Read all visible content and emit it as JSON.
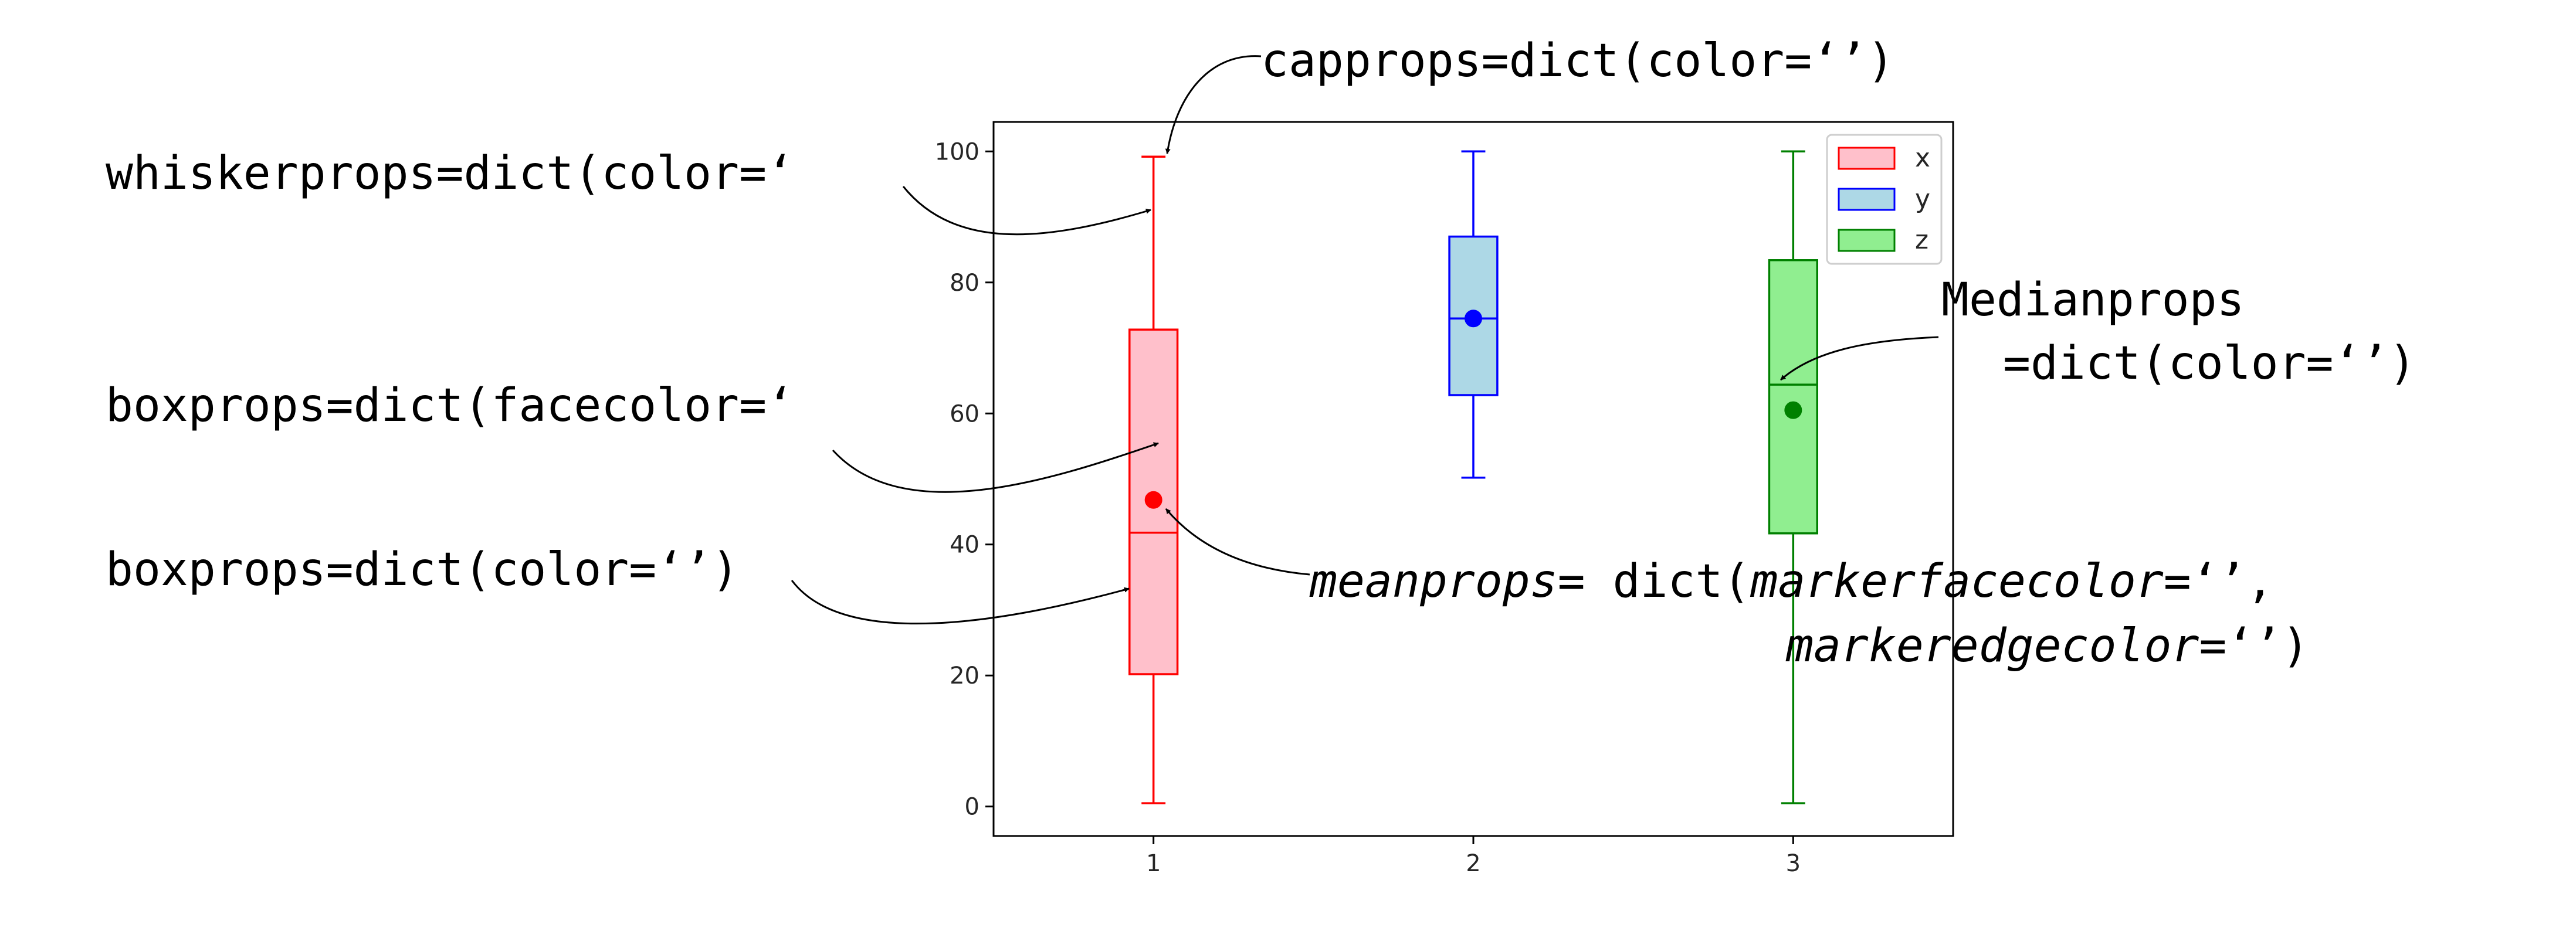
{
  "chart_data": {
    "type": "boxplot",
    "categories": [
      "1",
      "2",
      "3"
    ],
    "xticks": [
      "1",
      "2",
      "3"
    ],
    "yticks": [
      "0",
      "20",
      "40",
      "60",
      "80",
      "100"
    ],
    "ylim": [
      -4.5,
      104.5
    ],
    "xlim": [
      0.5,
      3.5
    ],
    "grid": false,
    "legend": {
      "placement": "top-right",
      "entries": [
        "x",
        "y",
        "z"
      ]
    },
    "series": [
      {
        "name": "x",
        "position": 1,
        "whisker_low": 0.5,
        "q1": 20.2,
        "median": 41.8,
        "q3": 72.8,
        "whisker_high": 99.2,
        "mean": 46.8,
        "face_color": "#ffc0cb",
        "edge_color": "#ff0000",
        "mean_color": "#ff0000"
      },
      {
        "name": "y",
        "position": 2,
        "whisker_low": 50.2,
        "q1": 62.8,
        "median": 74.5,
        "q3": 87.0,
        "whisker_high": 100.0,
        "mean": 74.5,
        "face_color": "#add8e6",
        "edge_color": "#0000ff",
        "mean_color": "#0000ff"
      },
      {
        "name": "z",
        "position": 3,
        "whisker_low": 0.5,
        "q1": 41.7,
        "median": 64.4,
        "q3": 83.4,
        "whisker_high": 100.0,
        "mean": 60.5,
        "face_color": "#90ee90",
        "edge_color": "#008000",
        "mean_color": "#008000"
      }
    ]
  },
  "annotations": {
    "capprops": "capprops=dict(color=‘’)",
    "whiskerprops": "whiskerprops=dict(color=‘",
    "boxprops_facecolor": "boxprops=dict(facecolor=‘",
    "boxprops_color": "boxprops=dict(color=‘’)",
    "medianprops_line1": "Medianprops",
    "medianprops_line2": "=dict(color=‘’)",
    "meanprops_keyword": "meanprops",
    "meanprops_eq": "= dict(",
    "meanprops_face_key": "markerfacecolor",
    "meanprops_face_val": "=‘’,",
    "meanprops_edge_key": "markeredgecolor",
    "meanprops_edge_val": "=‘’)"
  }
}
